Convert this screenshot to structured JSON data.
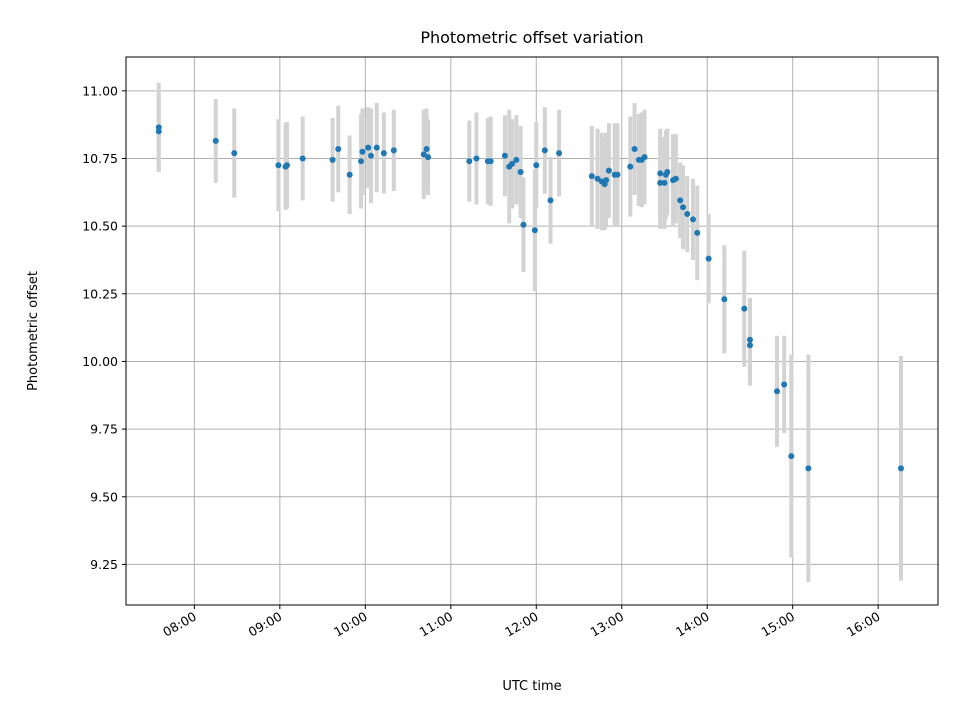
{
  "chart_data": {
    "type": "scatter",
    "title": "Photometric offset variation",
    "xlabel": "UTC time",
    "ylabel": "Photometric offset",
    "grid": true,
    "xlim_hours": [
      7.2,
      16.7
    ],
    "ylim": [
      9.1,
      11.125
    ],
    "x_ticks": [
      "08:00",
      "09:00",
      "10:00",
      "11:00",
      "12:00",
      "13:00",
      "14:00",
      "15:00",
      "16:00"
    ],
    "y_ticks": [
      "9.25",
      "9.50",
      "9.75",
      "10.00",
      "10.25",
      "10.50",
      "10.75",
      "11.00"
    ],
    "colors": {
      "points": "#1f77b4",
      "errorbars": "#d3d3d3"
    },
    "series": [
      {
        "time": [
          "07:35",
          "07:35",
          "08:15",
          "08:28",
          "08:59",
          "09:04",
          "09:05",
          "09:16",
          "09:37",
          "09:41",
          "09:49",
          "09:57",
          "09:58",
          "10:02",
          "10:04",
          "10:08",
          "10:13",
          "10:20",
          "10:41",
          "10:43",
          "10:44",
          "11:13",
          "11:18",
          "11:26",
          "11:28",
          "11:38",
          "11:41",
          "11:43",
          "11:46",
          "11:49",
          "11:51",
          "11:59",
          "12:00",
          "12:06",
          "12:10",
          "12:16",
          "12:39",
          "12:43",
          "12:46",
          "12:48",
          "12:49",
          "12:51",
          "12:55",
          "12:57",
          "13:06",
          "13:09",
          "13:12",
          "13:14",
          "13:16",
          "13:27",
          "13:27",
          "13:30",
          "13:31",
          "13:32",
          "13:36",
          "13:38",
          "13:41",
          "13:43",
          "13:46",
          "13:50",
          "13:53",
          "14:01",
          "14:12",
          "14:26",
          "14:30",
          "14:30",
          "14:49",
          "14:54",
          "14:59",
          "15:11",
          "16:16"
        ],
        "y": [
          10.85,
          10.865,
          10.815,
          10.77,
          10.725,
          10.72,
          10.725,
          10.75,
          10.745,
          10.785,
          10.69,
          10.74,
          10.775,
          10.79,
          10.76,
          10.79,
          10.77,
          10.78,
          10.765,
          10.785,
          10.755,
          10.74,
          10.75,
          10.74,
          10.74,
          10.76,
          10.72,
          10.73,
          10.745,
          10.7,
          10.505,
          10.485,
          10.725,
          10.78,
          10.595,
          10.77,
          10.685,
          10.675,
          10.665,
          10.655,
          10.67,
          10.705,
          10.69,
          10.69,
          10.72,
          10.785,
          10.745,
          10.745,
          10.755,
          10.695,
          10.66,
          10.66,
          10.69,
          10.7,
          10.67,
          10.675,
          10.595,
          10.57,
          10.545,
          10.525,
          10.475,
          10.38,
          10.23,
          10.195,
          10.06,
          10.08,
          9.89,
          9.915,
          9.65,
          9.605,
          9.605
        ],
        "err": [
          0.15,
          0.165,
          0.155,
          0.165,
          0.17,
          0.16,
          0.16,
          0.155,
          0.155,
          0.16,
          0.145,
          0.175,
          0.16,
          0.15,
          0.175,
          0.165,
          0.15,
          0.15,
          0.165,
          0.15,
          0.14,
          0.15,
          0.17,
          0.16,
          0.165,
          0.15,
          0.21,
          0.165,
          0.165,
          0.17,
          0.175,
          0.225,
          0.16,
          0.16,
          0.16,
          0.16,
          0.185,
          0.185,
          0.18,
          0.17,
          0.175,
          0.175,
          0.19,
          0.19,
          0.185,
          0.17,
          0.17,
          0.175,
          0.175,
          0.165,
          0.17,
          0.17,
          0.165,
          0.16,
          0.17,
          0.165,
          0.14,
          0.155,
          0.14,
          0.15,
          0.175,
          0.165,
          0.2,
          0.215,
          0.15,
          0.155,
          0.205,
          0.18,
          0.375,
          0.42,
          0.415
        ]
      }
    ]
  }
}
